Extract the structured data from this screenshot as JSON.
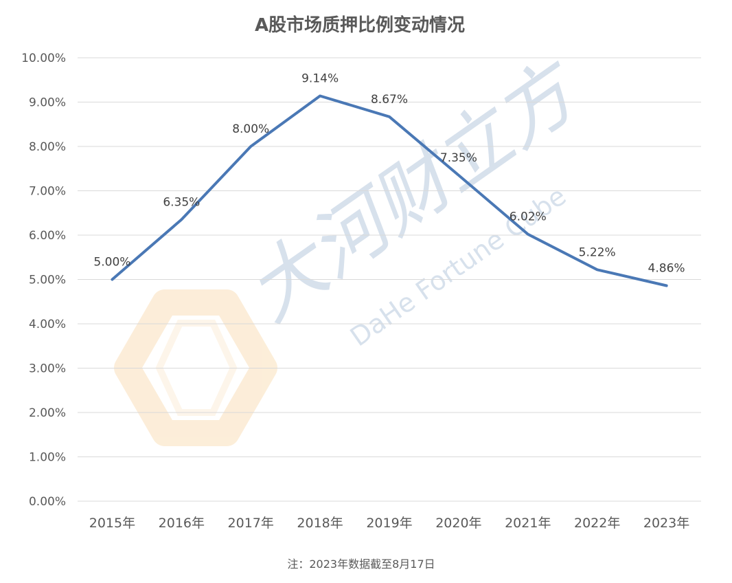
{
  "chart_data": {
    "type": "line",
    "title": "A股市场质押比例变动情况",
    "categories": [
      "2015年",
      "2016年",
      "2017年",
      "2018年",
      "2019年",
      "2020年",
      "2021年",
      "2022年",
      "2023年"
    ],
    "series": [
      {
        "values": [
          5.0,
          6.35,
          8.0,
          9.14,
          8.67,
          7.35,
          6.02,
          5.22,
          4.86
        ],
        "labels": [
          "5.00%",
          "6.35%",
          "8.00%",
          "9.14%",
          "8.67%",
          "7.35%",
          "6.02%",
          "5.22%",
          "4.86%"
        ]
      }
    ],
    "ylim": [
      0,
      10
    ],
    "yticks": [
      "0.00%",
      "1.00%",
      "2.00%",
      "3.00%",
      "4.00%",
      "5.00%",
      "6.00%",
      "7.00%",
      "8.00%",
      "9.00%",
      "10.00%"
    ],
    "grid": true,
    "legend": "none",
    "note": "注：2023年数据截至8月17日"
  },
  "watermark": {
    "text_cn": "大河财立方",
    "text_en": "DaHe Fortune Cube"
  },
  "colors": {
    "line": "#4a78b5",
    "grid": "#d9d9d9",
    "text": "#595959",
    "watermark_blue": "#b8c9de",
    "watermark_orange": "#f6c98a"
  }
}
